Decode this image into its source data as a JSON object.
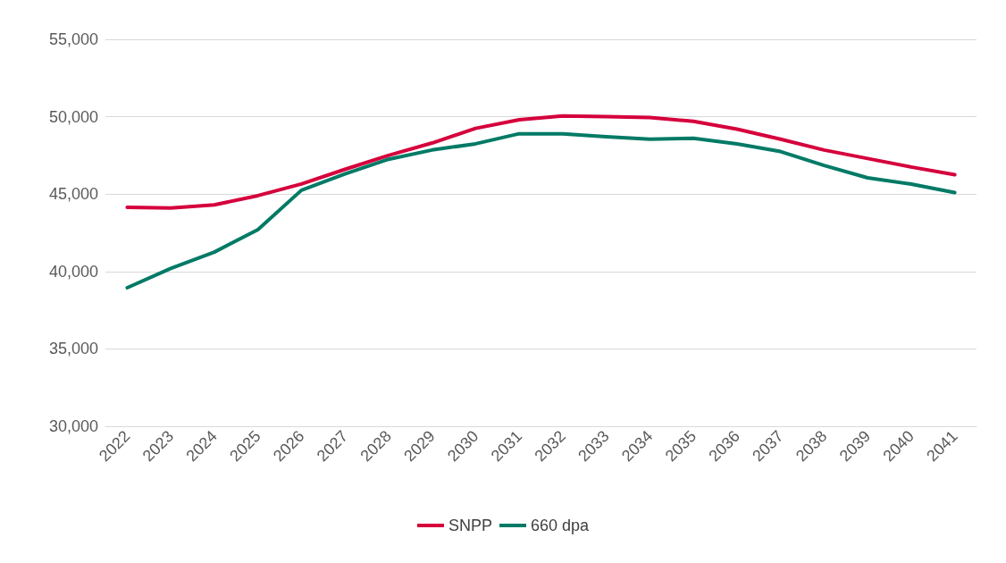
{
  "chart_data": {
    "type": "line",
    "categories": [
      "2022",
      "2023",
      "2024",
      "2025",
      "2026",
      "2027",
      "2028",
      "2029",
      "2030",
      "2031",
      "2032",
      "2033",
      "2034",
      "2035",
      "2036",
      "2037",
      "2038",
      "2039",
      "2040",
      "2041"
    ],
    "series": [
      {
        "name": "SNPP",
        "color": "#d5003c",
        "values": [
          44150,
          44100,
          44300,
          44900,
          45650,
          46600,
          47500,
          48300,
          49250,
          49800,
          50050,
          50000,
          49950,
          49700,
          49200,
          48550,
          47850,
          47300,
          46750,
          46250
        ]
      },
      {
        "name": "660 dpa",
        "color": "#007a66",
        "values": [
          38950,
          40200,
          41250,
          42700,
          45250,
          46300,
          47250,
          47850,
          48250,
          48900,
          48900,
          48700,
          48550,
          48600,
          48250,
          47750,
          46850,
          46050,
          45650,
          45100
        ]
      }
    ],
    "ylim": [
      30000,
      55000
    ],
    "yticks": [
      {
        "value": 30000,
        "label": "30,000"
      },
      {
        "value": 35000,
        "label": "35,000"
      },
      {
        "value": 40000,
        "label": "40,000"
      },
      {
        "value": 45000,
        "label": "45,000"
      },
      {
        "value": 50000,
        "label": "50,000"
      },
      {
        "value": 55000,
        "label": "55,000"
      }
    ],
    "grid": "y",
    "legend": "bottom",
    "marker": "none",
    "line_style": "solid"
  }
}
